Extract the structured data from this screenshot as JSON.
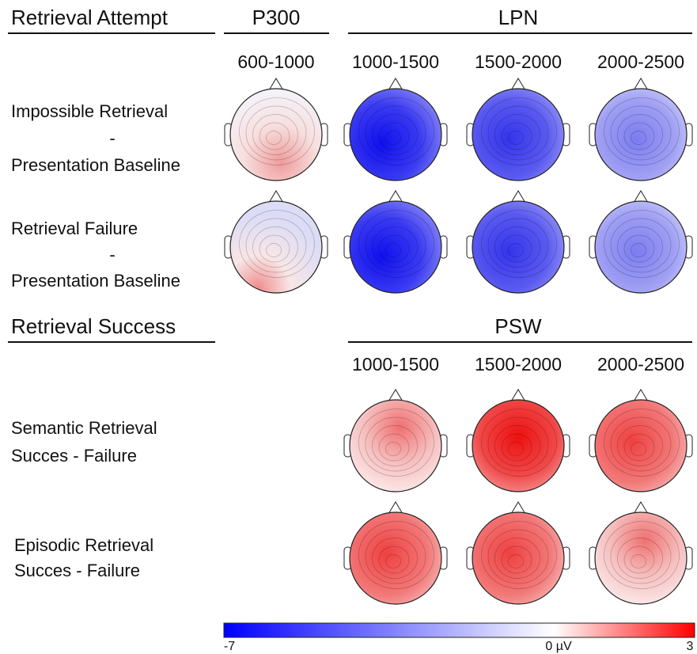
{
  "sections": [
    {
      "title": "Retrieval Attempt",
      "groups": [
        {
          "label": "P300",
          "windows": [
            "600-1000"
          ]
        },
        {
          "label": "LPN",
          "windows": [
            "1000-1500",
            "1500-2000",
            "2000-2500"
          ]
        }
      ],
      "rows": [
        {
          "lines": [
            "Impossible Retrieval",
            "-",
            "Presentation Baseline"
          ]
        },
        {
          "lines": [
            "Retrieval Failure",
            "-",
            "Presentation Baseline"
          ]
        }
      ]
    },
    {
      "title": "Retrieval Success",
      "groups": [
        {
          "label": "PSW",
          "windows": [
            "1000-1500",
            "1500-2000",
            "2000-2500"
          ]
        }
      ],
      "rows": [
        {
          "lines": [
            "Semantic Retrieval",
            "Succes - Failure"
          ]
        },
        {
          "lines": [
            "Episodic Retrieval",
            "Succes - Failure"
          ]
        }
      ]
    }
  ],
  "colorbar": {
    "labels": [
      "-7",
      "0 µV",
      "3"
    ]
  }
}
